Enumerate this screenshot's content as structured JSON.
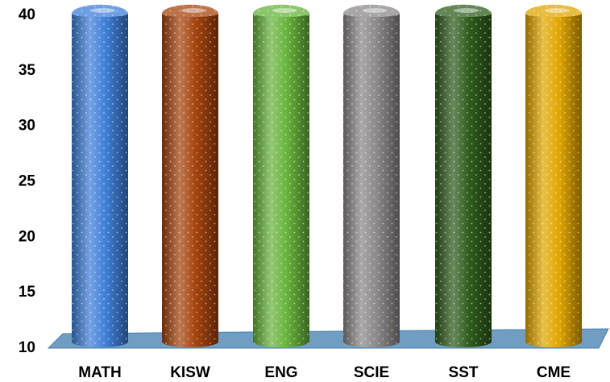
{
  "chart_data": {
    "type": "bar",
    "categories": [
      "MATH",
      "KISW",
      "ENG",
      "SCIE",
      "SST",
      "CME"
    ],
    "values": [
      40,
      40,
      40,
      40,
      40,
      40
    ],
    "ylim": [
      10,
      40
    ],
    "yticks": [
      "10",
      "15",
      "20",
      "25",
      "30",
      "35",
      "40"
    ],
    "colors": [
      "#3f7fd8",
      "#a5440e",
      "#67b43c",
      "#8b8888",
      "#2f5d1c",
      "#e0a600"
    ],
    "floor_color": "#6f9ec2",
    "grid": false,
    "legend": "none",
    "style": "3d-cylinder-dotted"
  }
}
